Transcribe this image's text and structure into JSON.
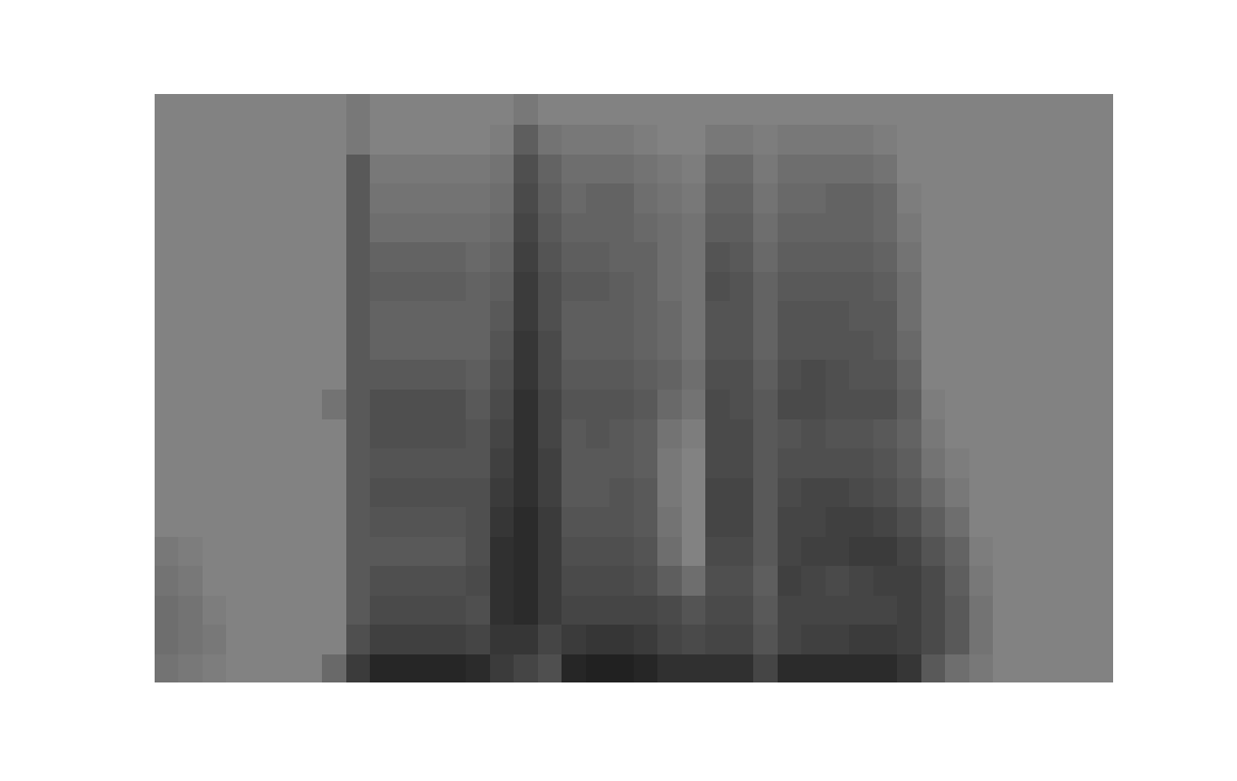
{
  "chart_data": {
    "type": "heatmap",
    "tick_labels": false,
    "grid": false,
    "xlim": [
      0,
      40
    ],
    "ylim": [
      0,
      20
    ],
    "zlim": [
      0,
      1
    ],
    "z": [
      [
        0.15,
        0.1,
        0.05,
        0,
        0,
        0,
        0,
        0.25,
        0.7,
        0.9,
        0.9,
        0.9,
        0.9,
        0.85,
        0.7,
        0.6,
        0.5,
        0.9,
        0.95,
        0.95,
        0.9,
        0.8,
        0.8,
        0.8,
        0.8,
        0.6,
        0.85,
        0.85,
        0.85,
        0.85,
        0.85,
        0.75,
        0.4,
        0.2,
        0.1,
        0,
        0,
        0,
        0,
        0
      ],
      [
        0.2,
        0.15,
        0.1,
        0,
        0,
        0,
        0,
        0,
        0.5,
        0.65,
        0.65,
        0.65,
        0.65,
        0.6,
        0.75,
        0.75,
        0.6,
        0.7,
        0.75,
        0.75,
        0.7,
        0.6,
        0.55,
        0.6,
        0.6,
        0.45,
        0.6,
        0.65,
        0.65,
        0.7,
        0.7,
        0.65,
        0.55,
        0.4,
        0.15,
        0,
        0,
        0,
        0,
        0
      ],
      [
        0.2,
        0.15,
        0.05,
        0,
        0,
        0,
        0,
        0,
        0.4,
        0.55,
        0.55,
        0.55,
        0.55,
        0.5,
        0.8,
        0.85,
        0.7,
        0.6,
        0.6,
        0.6,
        0.6,
        0.55,
        0.45,
        0.55,
        0.55,
        0.4,
        0.6,
        0.6,
        0.6,
        0.6,
        0.6,
        0.65,
        0.55,
        0.4,
        0.15,
        0,
        0,
        0,
        0,
        0
      ],
      [
        0.15,
        0.1,
        0,
        0,
        0,
        0,
        0,
        0,
        0.4,
        0.5,
        0.5,
        0.5,
        0.5,
        0.55,
        0.8,
        0.85,
        0.7,
        0.55,
        0.55,
        0.55,
        0.5,
        0.35,
        0.2,
        0.5,
        0.5,
        0.35,
        0.65,
        0.6,
        0.55,
        0.6,
        0.65,
        0.65,
        0.55,
        0.35,
        0.1,
        0,
        0,
        0,
        0,
        0
      ],
      [
        0.1,
        0.05,
        0,
        0,
        0,
        0,
        0,
        0,
        0.4,
        0.4,
        0.4,
        0.4,
        0.4,
        0.5,
        0.8,
        0.85,
        0.7,
        0.5,
        0.5,
        0.5,
        0.45,
        0.2,
        0,
        0.55,
        0.55,
        0.4,
        0.6,
        0.65,
        0.65,
        0.7,
        0.7,
        0.6,
        0.45,
        0.3,
        0.05,
        0,
        0,
        0,
        0,
        0
      ],
      [
        0,
        0,
        0,
        0,
        0,
        0,
        0,
        0,
        0.4,
        0.45,
        0.45,
        0.45,
        0.45,
        0.5,
        0.75,
        0.85,
        0.7,
        0.45,
        0.45,
        0.45,
        0.4,
        0.15,
        0,
        0.6,
        0.6,
        0.4,
        0.6,
        0.6,
        0.65,
        0.65,
        0.6,
        0.5,
        0.35,
        0.2,
        0,
        0,
        0,
        0,
        0,
        0
      ],
      [
        0,
        0,
        0,
        0,
        0,
        0,
        0,
        0,
        0.4,
        0.5,
        0.5,
        0.5,
        0.5,
        0.5,
        0.7,
        0.8,
        0.65,
        0.4,
        0.4,
        0.45,
        0.4,
        0.1,
        0,
        0.6,
        0.6,
        0.4,
        0.55,
        0.6,
        0.6,
        0.55,
        0.5,
        0.4,
        0.25,
        0.1,
        0,
        0,
        0,
        0,
        0,
        0
      ],
      [
        0,
        0,
        0,
        0,
        0,
        0,
        0,
        0,
        0.4,
        0.45,
        0.45,
        0.45,
        0.45,
        0.45,
        0.65,
        0.8,
        0.65,
        0.4,
        0.4,
        0.4,
        0.35,
        0.1,
        0,
        0.55,
        0.55,
        0.4,
        0.5,
        0.5,
        0.5,
        0.5,
        0.45,
        0.35,
        0.15,
        0.05,
        0,
        0,
        0,
        0,
        0,
        0
      ],
      [
        0,
        0,
        0,
        0,
        0,
        0,
        0,
        0,
        0.4,
        0.5,
        0.5,
        0.5,
        0.5,
        0.45,
        0.6,
        0.8,
        0.6,
        0.4,
        0.45,
        0.4,
        0.35,
        0.15,
        0.05,
        0.55,
        0.55,
        0.4,
        0.45,
        0.5,
        0.45,
        0.45,
        0.4,
        0.3,
        0.1,
        0,
        0,
        0,
        0,
        0,
        0,
        0
      ],
      [
        0,
        0,
        0,
        0,
        0,
        0,
        0,
        0.15,
        0.4,
        0.5,
        0.5,
        0.5,
        0.5,
        0.4,
        0.55,
        0.8,
        0.6,
        0.45,
        0.45,
        0.45,
        0.4,
        0.25,
        0.15,
        0.55,
        0.5,
        0.4,
        0.55,
        0.55,
        0.5,
        0.5,
        0.5,
        0.35,
        0.05,
        0,
        0,
        0,
        0,
        0,
        0,
        0
      ],
      [
        0,
        0,
        0,
        0,
        0,
        0,
        0,
        0,
        0.4,
        0.4,
        0.4,
        0.4,
        0.4,
        0.35,
        0.5,
        0.75,
        0.55,
        0.4,
        0.4,
        0.4,
        0.35,
        0.3,
        0.2,
        0.5,
        0.5,
        0.35,
        0.5,
        0.55,
        0.5,
        0.45,
        0.45,
        0.3,
        0,
        0,
        0,
        0,
        0,
        0,
        0,
        0
      ],
      [
        0,
        0,
        0,
        0,
        0,
        0,
        0,
        0,
        0.4,
        0.3,
        0.3,
        0.3,
        0.3,
        0.3,
        0.45,
        0.75,
        0.55,
        0.35,
        0.35,
        0.35,
        0.3,
        0.25,
        0.15,
        0.45,
        0.45,
        0.3,
        0.45,
        0.45,
        0.45,
        0.45,
        0.4,
        0.25,
        0,
        0,
        0,
        0,
        0,
        0,
        0,
        0
      ],
      [
        0,
        0,
        0,
        0,
        0,
        0,
        0,
        0,
        0.4,
        0.3,
        0.3,
        0.3,
        0.3,
        0.3,
        0.4,
        0.7,
        0.5,
        0.35,
        0.35,
        0.35,
        0.3,
        0.25,
        0.15,
        0.45,
        0.45,
        0.3,
        0.45,
        0.45,
        0.45,
        0.4,
        0.4,
        0.2,
        0,
        0,
        0,
        0,
        0,
        0,
        0,
        0
      ],
      [
        0,
        0,
        0,
        0,
        0,
        0,
        0,
        0,
        0.4,
        0.35,
        0.35,
        0.35,
        0.35,
        0.3,
        0.35,
        0.7,
        0.5,
        0.4,
        0.4,
        0.35,
        0.3,
        0.2,
        0.15,
        0.5,
        0.45,
        0.3,
        0.4,
        0.4,
        0.4,
        0.4,
        0.35,
        0.2,
        0,
        0,
        0,
        0,
        0,
        0,
        0,
        0
      ],
      [
        0,
        0,
        0,
        0,
        0,
        0,
        0,
        0,
        0.4,
        0.3,
        0.3,
        0.3,
        0.3,
        0.25,
        0.3,
        0.65,
        0.45,
        0.35,
        0.35,
        0.3,
        0.3,
        0.2,
        0.15,
        0.45,
        0.4,
        0.25,
        0.35,
        0.35,
        0.35,
        0.35,
        0.3,
        0.15,
        0,
        0,
        0,
        0,
        0,
        0,
        0,
        0
      ],
      [
        0,
        0,
        0,
        0,
        0,
        0,
        0,
        0,
        0.4,
        0.2,
        0.2,
        0.2,
        0.2,
        0.2,
        0.25,
        0.6,
        0.4,
        0.3,
        0.3,
        0.3,
        0.25,
        0.2,
        0.15,
        0.35,
        0.35,
        0.2,
        0.3,
        0.3,
        0.3,
        0.3,
        0.25,
        0.1,
        0,
        0,
        0,
        0,
        0,
        0,
        0,
        0
      ],
      [
        0,
        0,
        0,
        0,
        0,
        0,
        0,
        0,
        0.4,
        0.15,
        0.15,
        0.15,
        0.15,
        0.15,
        0.2,
        0.55,
        0.35,
        0.25,
        0.3,
        0.3,
        0.2,
        0.15,
        0.1,
        0.3,
        0.3,
        0.15,
        0.25,
        0.25,
        0.3,
        0.3,
        0.25,
        0.05,
        0,
        0,
        0,
        0,
        0,
        0,
        0,
        0
      ],
      [
        0,
        0,
        0,
        0,
        0,
        0,
        0,
        0,
        0.4,
        0.1,
        0.1,
        0.1,
        0.1,
        0.1,
        0.15,
        0.5,
        0.3,
        0.2,
        0.2,
        0.2,
        0.15,
        0.1,
        0.05,
        0.25,
        0.25,
        0.1,
        0.2,
        0.2,
        0.2,
        0.2,
        0.15,
        0,
        0,
        0,
        0,
        0,
        0,
        0,
        0,
        0
      ],
      [
        0,
        0,
        0,
        0,
        0,
        0,
        0,
        0,
        0.1,
        0,
        0,
        0,
        0,
        0,
        0.05,
        0.35,
        0.15,
        0.1,
        0.1,
        0.1,
        0.05,
        0,
        0,
        0.1,
        0.1,
        0.05,
        0.1,
        0.1,
        0.1,
        0.1,
        0.05,
        0,
        0,
        0,
        0,
        0,
        0,
        0,
        0,
        0
      ],
      [
        0,
        0,
        0,
        0,
        0,
        0,
        0,
        0,
        0.1,
        0,
        0,
        0,
        0,
        0,
        0,
        0.1,
        0,
        0,
        0,
        0,
        0,
        0,
        0,
        0,
        0,
        0,
        0,
        0,
        0,
        0,
        0,
        0,
        0,
        0,
        0,
        0,
        0,
        0,
        0,
        0
      ]
    ]
  }
}
